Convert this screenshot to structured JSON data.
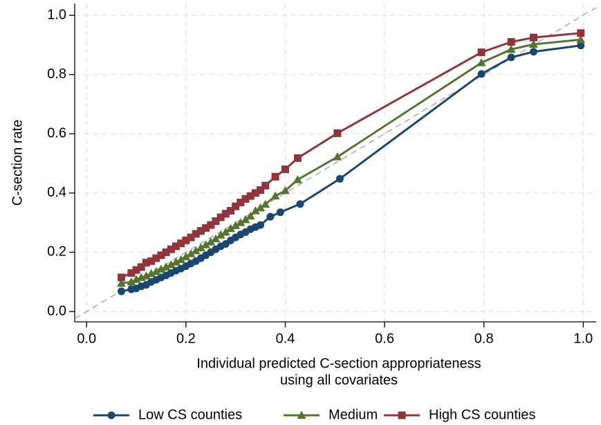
{
  "chart_data": {
    "type": "line",
    "ylabel": "C-section rate",
    "xlabel": [
      "Individual predicted C-section appropriateness",
      "using all covariates"
    ],
    "xlim": [
      -0.024,
      1.026
    ],
    "ylim": [
      -0.035,
      1.04
    ],
    "xticks": [
      {
        "value": 0,
        "label": "0.0"
      },
      0.2,
      0.4,
      0.6,
      0.8,
      {
        "value": 1,
        "label": "1.0"
      }
    ],
    "yticks": [
      {
        "value": 0,
        "label": "0.0"
      },
      0.2,
      0.4,
      0.6,
      0.8,
      {
        "value": 1,
        "label": "1.0"
      }
    ],
    "grid": true,
    "diagonal_reference": true,
    "legend": "bottom",
    "series": [
      {
        "name": "Low CS counties",
        "color": "#1a476f",
        "marker": "circle",
        "x": [
          0.07,
          0.09,
          0.1,
          0.11,
          0.12,
          0.13,
          0.14,
          0.15,
          0.16,
          0.17,
          0.18,
          0.19,
          0.2,
          0.21,
          0.22,
          0.23,
          0.24,
          0.25,
          0.26,
          0.27,
          0.28,
          0.29,
          0.3,
          0.31,
          0.32,
          0.33,
          0.34,
          0.35,
          0.37,
          0.39,
          0.43,
          0.51,
          0.795,
          0.855,
          0.9,
          0.995
        ],
        "values": [
          0.068,
          0.075,
          0.078,
          0.085,
          0.09,
          0.1,
          0.107,
          0.115,
          0.122,
          0.13,
          0.138,
          0.145,
          0.153,
          0.162,
          0.17,
          0.18,
          0.19,
          0.2,
          0.21,
          0.22,
          0.228,
          0.24,
          0.25,
          0.26,
          0.268,
          0.278,
          0.285,
          0.292,
          0.32,
          0.335,
          0.363,
          0.448,
          0.802,
          0.858,
          0.877,
          0.898
        ]
      },
      {
        "name": "Medium",
        "color": "#55752f",
        "marker": "triangle",
        "x": [
          0.07,
          0.09,
          0.1,
          0.11,
          0.12,
          0.13,
          0.14,
          0.15,
          0.16,
          0.17,
          0.18,
          0.19,
          0.2,
          0.21,
          0.22,
          0.23,
          0.24,
          0.25,
          0.26,
          0.27,
          0.28,
          0.29,
          0.3,
          0.31,
          0.32,
          0.33,
          0.34,
          0.35,
          0.36,
          0.38,
          0.4,
          0.425,
          0.505,
          0.795,
          0.855,
          0.9,
          0.995
        ],
        "values": [
          0.095,
          0.1,
          0.108,
          0.115,
          0.12,
          0.128,
          0.135,
          0.143,
          0.15,
          0.158,
          0.167,
          0.175,
          0.185,
          0.195,
          0.205,
          0.215,
          0.225,
          0.235,
          0.245,
          0.258,
          0.268,
          0.28,
          0.29,
          0.3,
          0.31,
          0.322,
          0.34,
          0.35,
          0.362,
          0.39,
          0.408,
          0.445,
          0.522,
          0.84,
          0.885,
          0.902,
          0.918
        ]
      },
      {
        "name": "High CS counties",
        "color": "#90353b",
        "marker": "square",
        "x": [
          0.07,
          0.09,
          0.1,
          0.11,
          0.12,
          0.13,
          0.14,
          0.15,
          0.16,
          0.17,
          0.18,
          0.19,
          0.2,
          0.21,
          0.22,
          0.23,
          0.24,
          0.25,
          0.26,
          0.27,
          0.28,
          0.29,
          0.3,
          0.31,
          0.32,
          0.33,
          0.34,
          0.35,
          0.36,
          0.38,
          0.4,
          0.425,
          0.505,
          0.795,
          0.855,
          0.9,
          0.995
        ],
        "values": [
          0.115,
          0.13,
          0.14,
          0.15,
          0.165,
          0.17,
          0.18,
          0.19,
          0.2,
          0.21,
          0.22,
          0.23,
          0.24,
          0.25,
          0.262,
          0.272,
          0.282,
          0.292,
          0.305,
          0.318,
          0.33,
          0.34,
          0.355,
          0.368,
          0.38,
          0.39,
          0.4,
          0.41,
          0.425,
          0.455,
          0.48,
          0.518,
          0.602,
          0.875,
          0.91,
          0.925,
          0.94
        ]
      }
    ]
  }
}
